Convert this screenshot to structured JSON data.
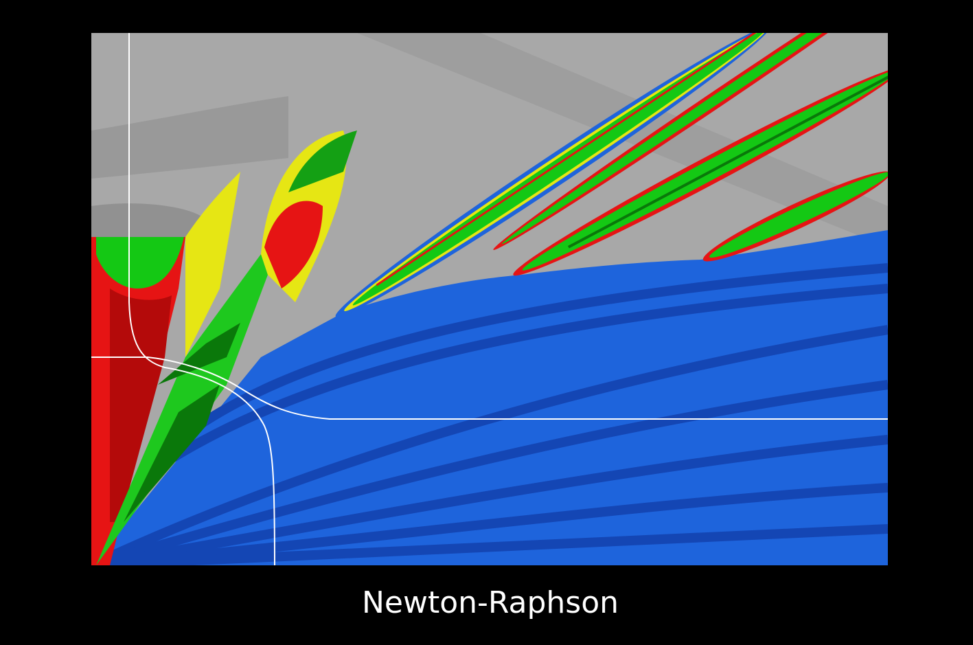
{
  "caption": "Newton-Raphson"
}
